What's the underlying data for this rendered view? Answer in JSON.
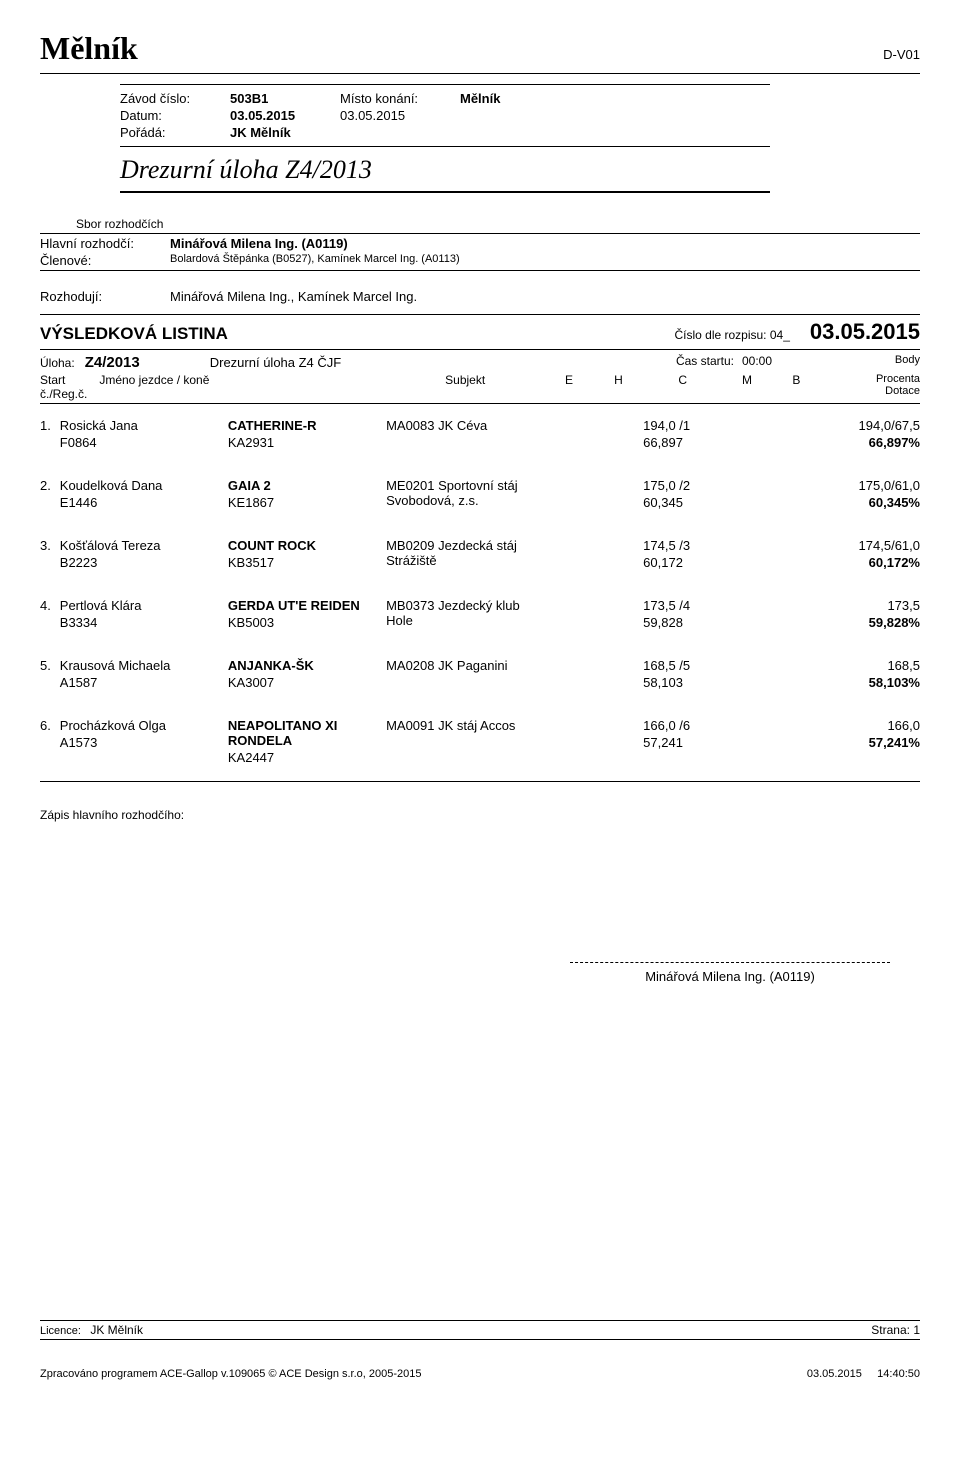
{
  "doc": {
    "title": "Mělník",
    "code": "D-V01"
  },
  "meta": {
    "zavod_lbl": "Závod číslo:",
    "zavod_val": "503B1",
    "misto_lbl": "Místo konání:",
    "misto_val": "Mělník",
    "datum_lbl": "Datum:",
    "datum_val": "03.05.2015",
    "konani_date": "03.05.2015",
    "porada_lbl": "Pořádá:",
    "porada_val": "JK Mělník",
    "subtitle": "Drezurní úloha Z4/2013"
  },
  "judges": {
    "sbor": "Sbor rozhodčích",
    "hlavni_lbl": "Hlavní rozhodčí:",
    "hlavni_val": "Minářová Milena Ing. (A0119)",
    "clenove_lbl": "Členové:",
    "clenove_val": "Bolardová Štěpánka (B0527), Kamínek Marcel Ing. (A0113)"
  },
  "decide": {
    "lbl": "Rozhodují:",
    "val": "Minářová Milena Ing.,  Kamínek Marcel Ing."
  },
  "results_head": {
    "title": "VÝSLEDKOVÁ LISTINA",
    "rozpis_lbl": "Číslo dle rozpisu:",
    "rozpis_val": "04_",
    "date": "03.05.2015"
  },
  "tbl_head": {
    "uloha_lbl": "Úloha:",
    "uloha_val": "Z4/2013",
    "uloha_desc": "Drezurní úloha Z4 ČJF",
    "cas_lbl": "Čas startu:",
    "cas_val": "00:00",
    "start_lbl": "Start č./Reg.č.",
    "jmeno_lbl": "Jméno jezdce / koně",
    "subjekt_lbl": "Subjekt",
    "col_e": "E",
    "col_h": "H",
    "col_c": "C",
    "col_m": "M",
    "col_b": "B",
    "body1": "Body",
    "body2": "Procenta",
    "body3": "Dotace"
  },
  "entries": [
    {
      "rank": "1.",
      "rider": "Rosická Jana",
      "rider_reg": "F0864",
      "horse": "CATHERINE-R",
      "horse_reg": "KA2931",
      "subj": "MA0083  JK Céva",
      "c_pts": "194,0  /1",
      "c_pct": "66,897",
      "tot_pts": "194,0/67,5",
      "tot_pct": "66,897%"
    },
    {
      "rank": "2.",
      "rider": "Koudelková Dana",
      "rider_reg": "E1446",
      "horse": "GAIA 2",
      "horse_reg": "KE1867",
      "subj": "ME0201  Sportovní stáj Svobodová, z.s.",
      "c_pts": "175,0  /2",
      "c_pct": "60,345",
      "tot_pts": "175,0/61,0",
      "tot_pct": "60,345%"
    },
    {
      "rank": "3.",
      "rider": "Košťálová Tereza",
      "rider_reg": "B2223",
      "horse": "COUNT ROCK",
      "horse_reg": "KB3517",
      "subj": "MB0209  Jezdecká stáj Strážiště",
      "c_pts": "174,5  /3",
      "c_pct": "60,172",
      "tot_pts": "174,5/61,0",
      "tot_pct": "60,172%"
    },
    {
      "rank": "4.",
      "rider": "Pertlová Klára",
      "rider_reg": "B3334",
      "horse": "GERDA UT'E REIDEN",
      "horse_reg": "KB5003",
      "subj": "MB0373  Jezdecký klub Hole",
      "c_pts": "173,5  /4",
      "c_pct": "59,828",
      "tot_pts": "173,5",
      "tot_pct": "59,828%"
    },
    {
      "rank": "5.",
      "rider": "Krausová Michaela",
      "rider_reg": "A1587",
      "horse": "ANJANKA-ŠK",
      "horse_reg": "KA3007",
      "subj": "MA0208  JK Paganini",
      "c_pts": "168,5  /5",
      "c_pct": "58,103",
      "tot_pts": "168,5",
      "tot_pct": "58,103%"
    },
    {
      "rank": "6.",
      "rider": "Procházková Olga",
      "rider_reg": "A1573",
      "horse": "NEAPOLITANO XI RONDELA",
      "horse_reg": "KA2447",
      "subj": "MA0091  JK stáj Accos",
      "c_pts": "166,0  /6",
      "c_pct": "57,241",
      "tot_pts": "166,0",
      "tot_pct": "57,241%"
    }
  ],
  "sig": {
    "zapis": "Zápis hlavního rozhodčího:",
    "name": "Minářová Milena Ing. (A0119)"
  },
  "footer": {
    "lic_lbl": "Licence:",
    "lic_val": "JK Mělník",
    "strana_lbl": "Strana:",
    "strana_val": "1",
    "gen": "Zpracováno programem ACE-Gallop v.109065 © ACE Design s.r.o, 2005-2015",
    "date": "03.05.2015",
    "time": "14:40:50"
  }
}
